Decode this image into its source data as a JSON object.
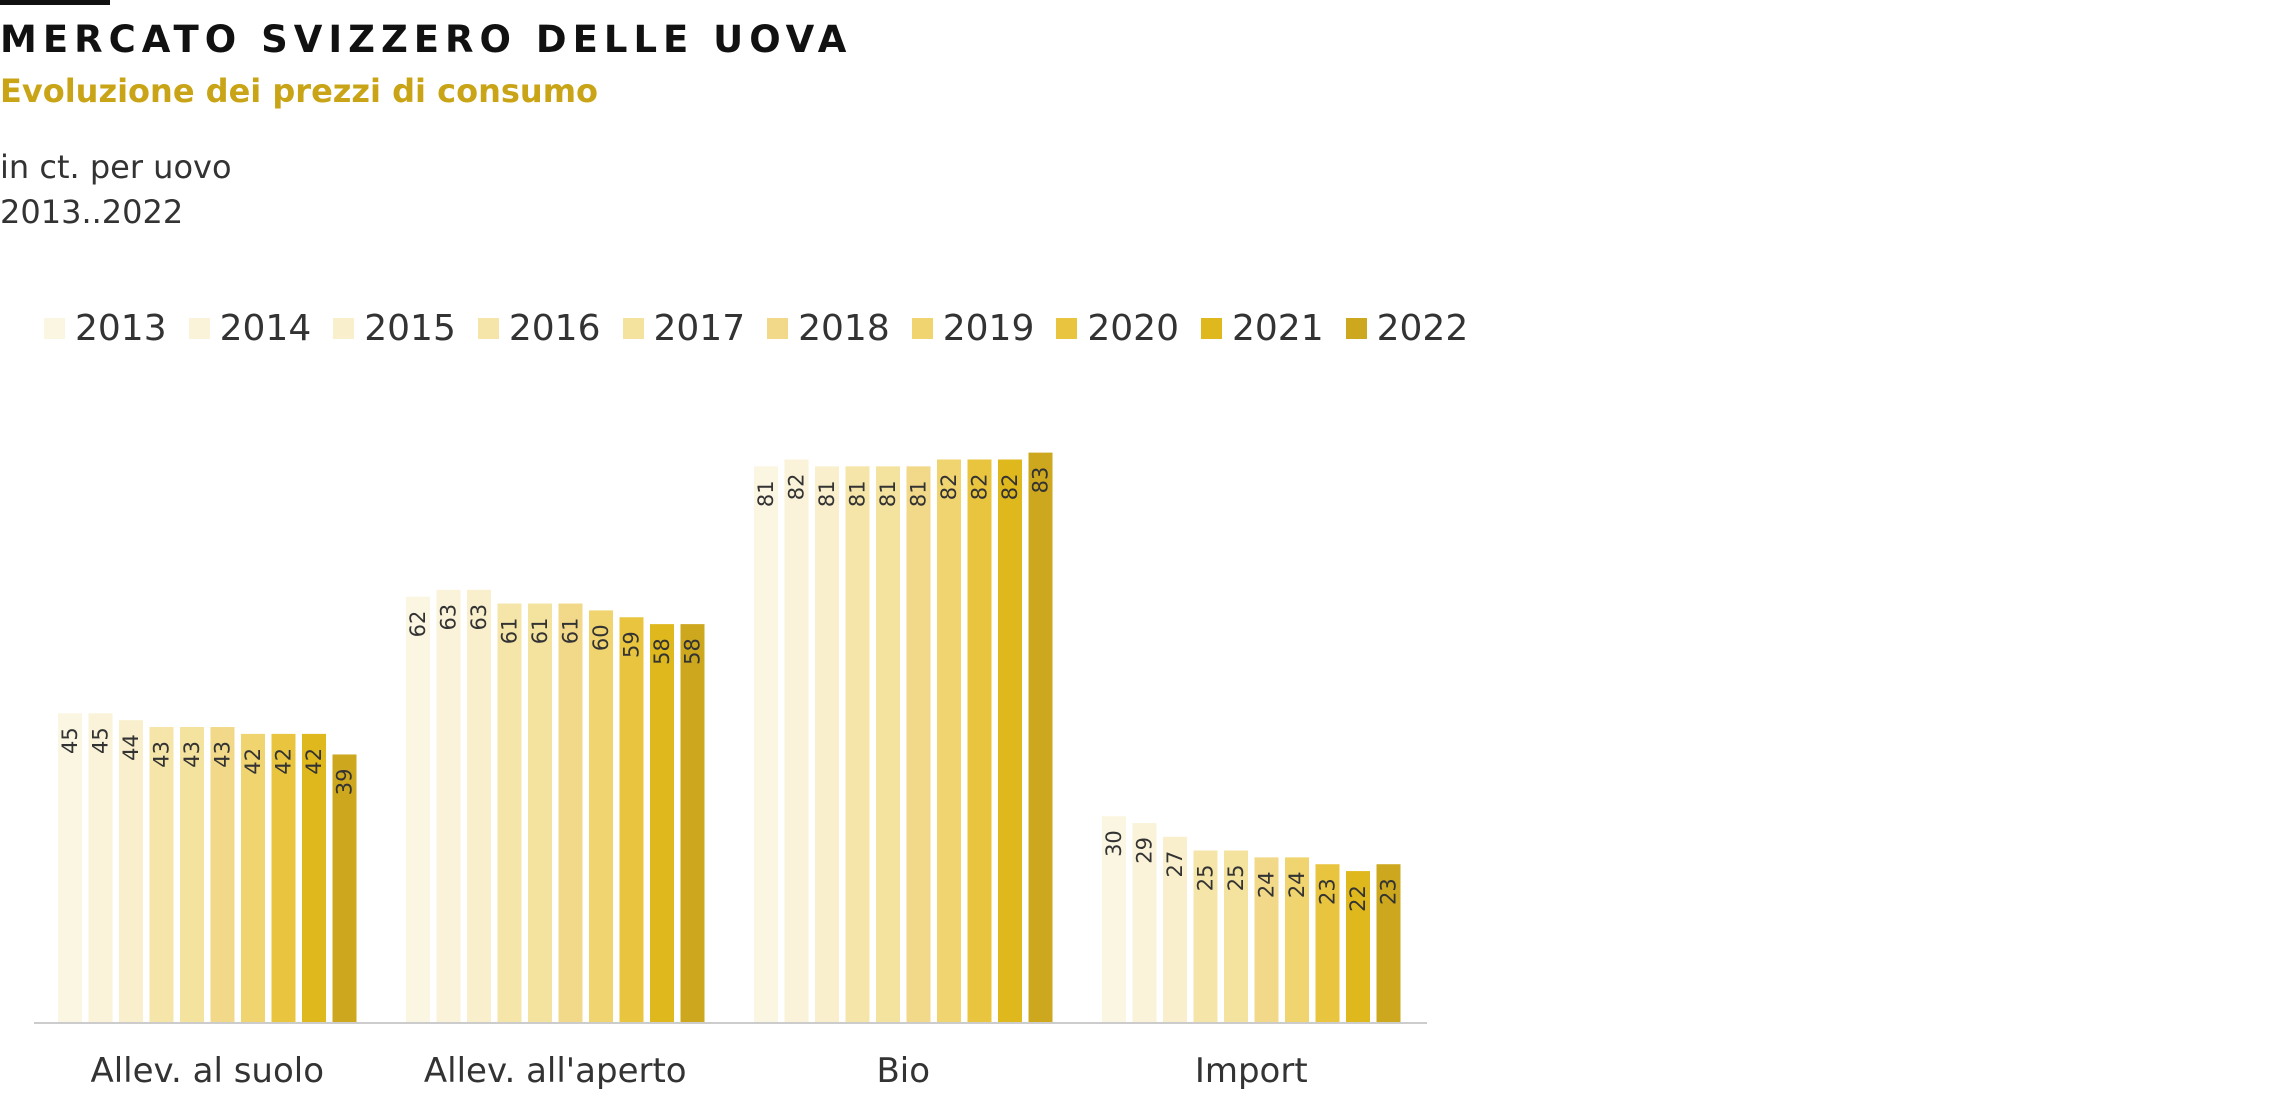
{
  "header": {
    "title": "MERCATO SVIZZERO DELLE UOVA",
    "subtitle": "Evoluzione dei prezzi di consumo",
    "unit": "in ct. per uovo",
    "period": "2013..2022"
  },
  "colors": {
    "title_rule": "#111111",
    "subtitle": "#c9a417",
    "axis": "#cccccc",
    "series": [
      "#fbf6e2",
      "#faf3d9",
      "#f9efcc",
      "#f6e5a9",
      "#f4e29f",
      "#f2d98a",
      "#efd470",
      "#e9c53f",
      "#dfb81d",
      "#cda81e"
    ]
  },
  "chart_data": {
    "type": "bar",
    "categories": [
      "Allev. al suolo",
      "Allev. all'aperto",
      "Bio",
      "Import"
    ],
    "series": [
      {
        "name": "2013",
        "values": [
          45,
          62,
          81,
          30
        ]
      },
      {
        "name": "2014",
        "values": [
          45,
          63,
          82,
          29
        ]
      },
      {
        "name": "2015",
        "values": [
          44,
          63,
          81,
          27
        ]
      },
      {
        "name": "2016",
        "values": [
          43,
          61,
          81,
          25
        ]
      },
      {
        "name": "2017",
        "values": [
          43,
          61,
          81,
          25
        ]
      },
      {
        "name": "2018",
        "values": [
          43,
          61,
          81,
          24
        ]
      },
      {
        "name": "2019",
        "values": [
          42,
          60,
          82,
          24
        ]
      },
      {
        "name": "2020",
        "values": [
          42,
          59,
          82,
          23
        ]
      },
      {
        "name": "2021",
        "values": [
          42,
          58,
          82,
          22
        ]
      },
      {
        "name": "2022",
        "values": [
          39,
          58,
          83,
          23
        ]
      }
    ],
    "title": "MERCATO SVIZZERO DELLE UOVA",
    "subtitle": "Evoluzione dei prezzi di consumo",
    "ylabel": "in ct. per uovo",
    "ylim": [
      0,
      85
    ],
    "grid": false,
    "legend": "top-left",
    "data_labels": true
  }
}
